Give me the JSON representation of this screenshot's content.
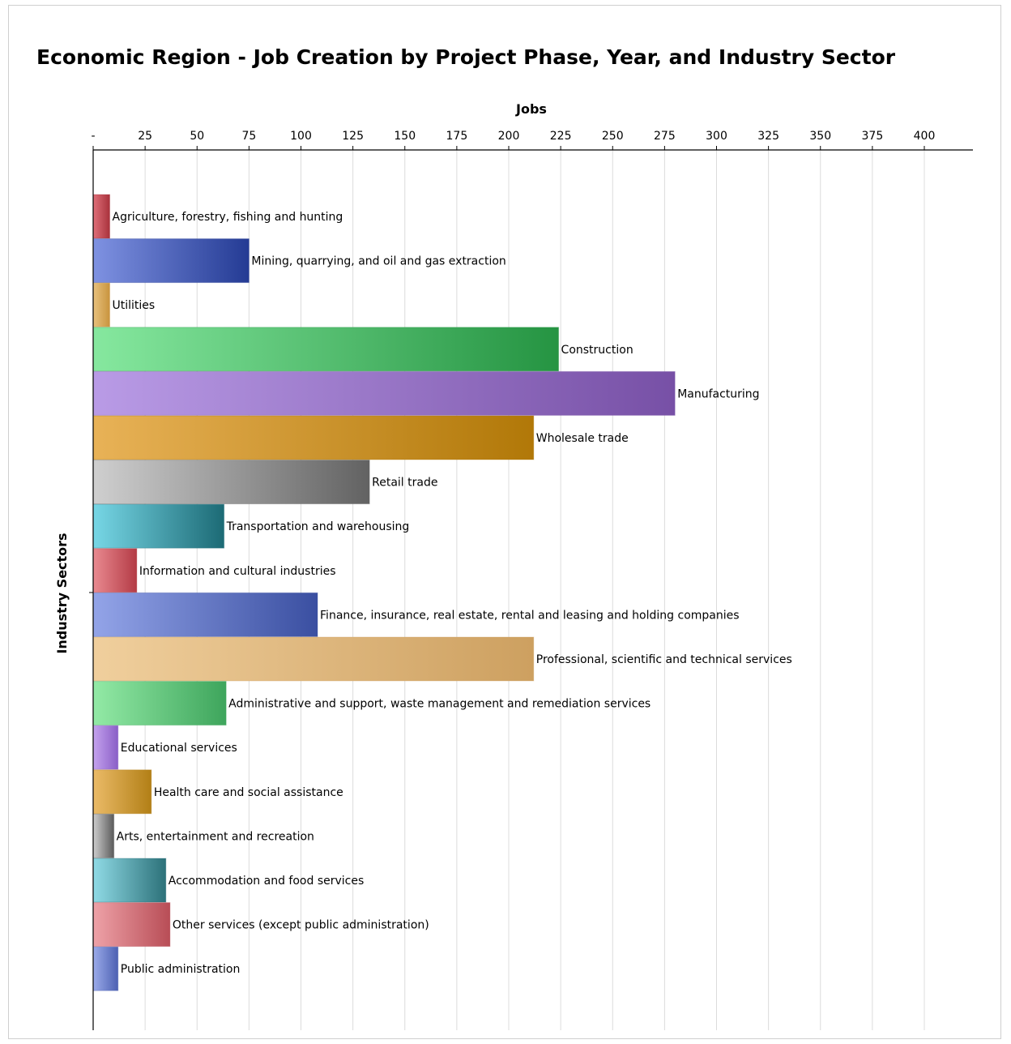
{
  "chart_data": {
    "type": "bar",
    "orientation": "horizontal",
    "title": "Economic Region - Job Creation by Project Phase, Year, and Industry Sector",
    "xlabel": "Jobs",
    "ylabel": "Industry Sectors",
    "xlim": [
      0,
      425
    ],
    "x_ticks": [
      {
        "value": 0,
        "label": "-"
      },
      {
        "value": 25,
        "label": "25"
      },
      {
        "value": 50,
        "label": "50"
      },
      {
        "value": 75,
        "label": "75"
      },
      {
        "value": 100,
        "label": "100"
      },
      {
        "value": 125,
        "label": "125"
      },
      {
        "value": 150,
        "label": "150"
      },
      {
        "value": 175,
        "label": "175"
      },
      {
        "value": 200,
        "label": "200"
      },
      {
        "value": 225,
        "label": "225"
      },
      {
        "value": 250,
        "label": "250"
      },
      {
        "value": 275,
        "label": "275"
      },
      {
        "value": 300,
        "label": "300"
      },
      {
        "value": 325,
        "label": "325"
      },
      {
        "value": 350,
        "label": "350"
      },
      {
        "value": 375,
        "label": "375"
      },
      {
        "value": 400,
        "label": "400"
      }
    ],
    "axis_position": "top",
    "grid": true,
    "legend": "none",
    "bars": [
      {
        "category": "Agriculture, forestry, fishing and hunting",
        "value": 8,
        "color_light": "#e0707a",
        "color_dark": "#a8323c"
      },
      {
        "category": "Mining, quarrying, and oil and gas extraction",
        "value": 75,
        "color_light": "#7f92e2",
        "color_dark": "#243b94"
      },
      {
        "category": "Utilities",
        "value": 8,
        "color_light": "#e9c27e",
        "color_dark": "#c8943e"
      },
      {
        "category": "Construction",
        "value": 224,
        "color_light": "#86e89f",
        "color_dark": "#259442"
      },
      {
        "category": "Manufacturing",
        "value": 280,
        "color_light": "#b99be6",
        "color_dark": "#7750a6"
      },
      {
        "category": "Wholesale trade",
        "value": 212,
        "color_light": "#e8b257",
        "color_dark": "#b17808"
      },
      {
        "category": "Retail trade",
        "value": 133,
        "color_light": "#cfcfcf",
        "color_dark": "#626262"
      },
      {
        "category": "Transportation and warehousing",
        "value": 63,
        "color_light": "#77d7e6",
        "color_dark": "#1c6a75"
      },
      {
        "category": "Information and cultural industries",
        "value": 21,
        "color_light": "#e98a91",
        "color_dark": "#b43b45"
      },
      {
        "category": "Finance, insurance, real estate, rental and leasing and holding companies",
        "value": 108,
        "color_light": "#93a4e8",
        "color_dark": "#3a4fa1"
      },
      {
        "category": "Professional, scientific and technical services",
        "value": 212,
        "color_light": "#f0cf9d",
        "color_dark": "#cda060"
      },
      {
        "category": "Administrative and support, waste management and remediation services",
        "value": 64,
        "color_light": "#93eaa6",
        "color_dark": "#3ea55c"
      },
      {
        "category": "Educational services",
        "value": 12,
        "color_light": "#c5a3ee",
        "color_dark": "#8a5ec7"
      },
      {
        "category": "Health care and social assistance",
        "value": 28,
        "color_light": "#ebbb68",
        "color_dark": "#b27f16"
      },
      {
        "category": "Arts, entertainment and recreation",
        "value": 10,
        "color_light": "#cecece",
        "color_dark": "#5b5b5b"
      },
      {
        "category": "Accommodation and food services",
        "value": 35,
        "color_light": "#90dbe6",
        "color_dark": "#2c7179"
      },
      {
        "category": "Other services (except public administration)",
        "value": 37,
        "color_light": "#eea2a8",
        "color_dark": "#b84d56"
      },
      {
        "category": "Public administration",
        "value": 12,
        "color_light": "#9cacea",
        "color_dark": "#4c60b2"
      }
    ]
  }
}
